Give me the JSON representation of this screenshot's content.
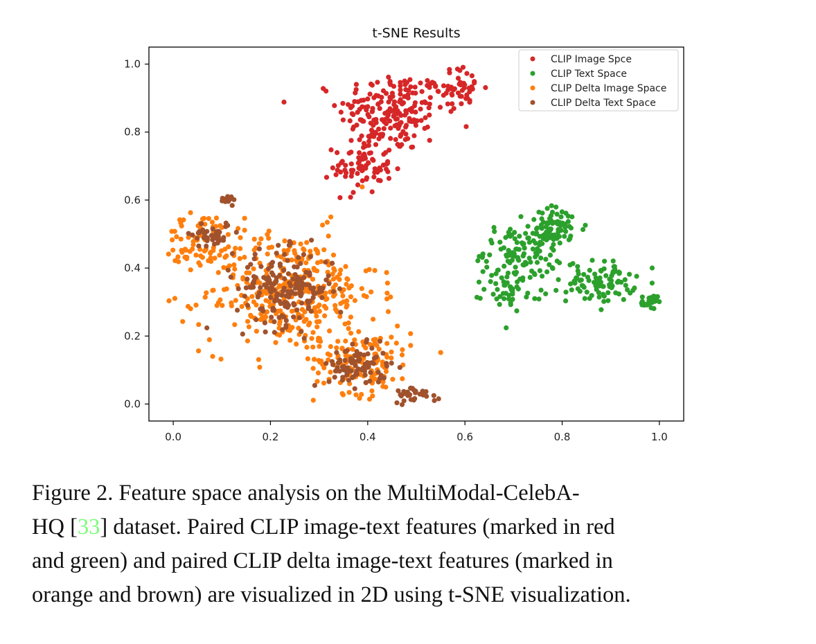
{
  "chart_data": {
    "type": "scatter",
    "title": "t-SNE Results",
    "xlabel": "",
    "ylabel": "",
    "xlim": [
      -0.05,
      1.05
    ],
    "ylim": [
      -0.05,
      1.05
    ],
    "xticks": [
      "0.0",
      "0.2",
      "0.4",
      "0.6",
      "0.8",
      "1.0"
    ],
    "yticks": [
      "0.0",
      "0.2",
      "0.4",
      "0.6",
      "0.8",
      "1.0"
    ],
    "legend_position": "top-right",
    "grid": false,
    "series": [
      {
        "name": "CLIP Image Spce",
        "color": "#d62728",
        "clusters": [
          {
            "cx": 0.45,
            "cy": 0.86,
            "sx": 0.055,
            "sy": 0.06,
            "n": 200
          },
          {
            "cx": 0.39,
            "cy": 0.7,
            "sx": 0.03,
            "sy": 0.04,
            "n": 80
          },
          {
            "cx": 0.59,
            "cy": 0.93,
            "sx": 0.025,
            "sy": 0.03,
            "n": 50
          }
        ]
      },
      {
        "name": "CLIP Text Space",
        "color": "#2ca02c",
        "clusters": [
          {
            "cx": 0.72,
            "cy": 0.45,
            "sx": 0.04,
            "sy": 0.04,
            "n": 120
          },
          {
            "cx": 0.79,
            "cy": 0.52,
            "sx": 0.03,
            "sy": 0.03,
            "n": 60
          },
          {
            "cx": 0.88,
            "cy": 0.36,
            "sx": 0.035,
            "sy": 0.03,
            "n": 90
          },
          {
            "cx": 0.7,
            "cy": 0.34,
            "sx": 0.03,
            "sy": 0.03,
            "n": 50
          },
          {
            "cx": 0.98,
            "cy": 0.3,
            "sx": 0.008,
            "sy": 0.01,
            "n": 25
          }
        ]
      },
      {
        "name": "CLIP Delta Image Space",
        "color": "#ff7f0e",
        "clusters": [
          {
            "cx": 0.24,
            "cy": 0.33,
            "sx": 0.09,
            "sy": 0.09,
            "n": 380
          },
          {
            "cx": 0.06,
            "cy": 0.48,
            "sx": 0.04,
            "sy": 0.04,
            "n": 70
          },
          {
            "cx": 0.39,
            "cy": 0.13,
            "sx": 0.05,
            "sy": 0.05,
            "n": 130
          }
        ]
      },
      {
        "name": "CLIP Delta Text Space",
        "color": "#a0522d",
        "clusters": [
          {
            "cx": 0.23,
            "cy": 0.34,
            "sx": 0.05,
            "sy": 0.055,
            "n": 180
          },
          {
            "cx": 0.08,
            "cy": 0.5,
            "sx": 0.02,
            "sy": 0.02,
            "n": 40
          },
          {
            "cx": 0.11,
            "cy": 0.6,
            "sx": 0.012,
            "sy": 0.007,
            "n": 15
          },
          {
            "cx": 0.38,
            "cy": 0.11,
            "sx": 0.03,
            "sy": 0.03,
            "n": 90
          },
          {
            "cx": 0.5,
            "cy": 0.03,
            "sx": 0.025,
            "sy": 0.012,
            "n": 30
          }
        ]
      }
    ]
  },
  "caption": {
    "line1": "Figure 2.  Feature space analysis on the MultiModal-CelebA-",
    "line2_pre": "HQ [",
    "line2_cite": "33",
    "line2_post": "] dataset. Paired CLIP image-text features (marked in red",
    "line3": "and green) and paired CLIP delta image-text features (marked in",
    "line4": "orange and brown) are visualized in 2D using t-SNE visualization."
  }
}
